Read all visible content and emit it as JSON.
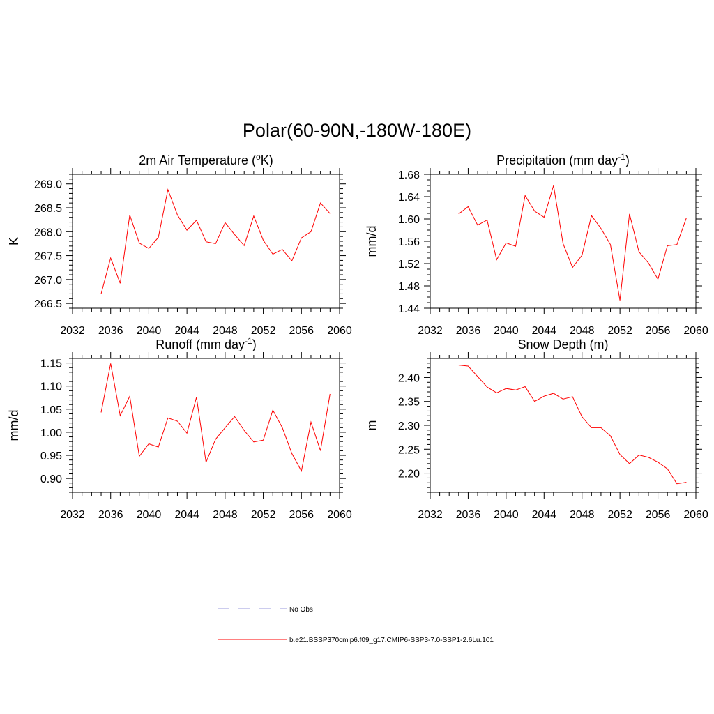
{
  "title": "Polar(60-90N,-180W-180E)",
  "legend": [
    {
      "label": "No Obs",
      "style": "dashed",
      "color": "#9999dd"
    },
    {
      "label": "b.e21.BSSP370cmip6.f09_g17.CMIP6-SSP3-7.0-SSP1-2.6Lu.101",
      "style": "solid",
      "color": "#ff0000"
    }
  ],
  "chart_data": [
    {
      "type": "line",
      "title": "2m Air Temperature (",
      "title_sup": "o",
      "title_tail": "K)",
      "ylabel": "K",
      "xlim": [
        2032,
        2060
      ],
      "ylim": [
        266.4,
        269.2
      ],
      "xticks": [
        2032,
        2036,
        2040,
        2044,
        2048,
        2052,
        2056,
        2060
      ],
      "xtick_labels": [
        "2032",
        "2036",
        "2040",
        "2044",
        "2048",
        "2052",
        "2056",
        "2060"
      ],
      "yticks": [
        266.5,
        267.0,
        267.5,
        268.0,
        268.5,
        269.0
      ],
      "ytick_labels": [
        "266.5",
        "267.0",
        "267.5",
        "268.0",
        "268.5",
        "269.0"
      ],
      "yminor": 0.1,
      "x": [
        2035,
        2036,
        2037,
        2038,
        2039,
        2040,
        2041,
        2042,
        2043,
        2044,
        2045,
        2046,
        2047,
        2048,
        2049,
        2050,
        2051,
        2052,
        2053,
        2054,
        2055,
        2056,
        2057,
        2058,
        2059
      ],
      "series": [
        {
          "values": [
            266.7,
            267.45,
            266.92,
            268.35,
            267.76,
            267.65,
            267.88,
            268.88,
            268.35,
            268.03,
            268.24,
            267.79,
            267.75,
            268.19,
            267.94,
            267.71,
            268.33,
            267.82,
            267.53,
            267.63,
            267.39,
            267.87,
            268.0,
            268.6,
            268.38
          ],
          "color": "#ff0000"
        }
      ]
    },
    {
      "type": "line",
      "title": "Precipitation (mm day",
      "title_sup": "-1",
      "title_tail": ")",
      "ylabel": "mm/d",
      "xlim": [
        2032,
        2060
      ],
      "ylim": [
        1.44,
        1.68
      ],
      "xticks": [
        2032,
        2036,
        2040,
        2044,
        2048,
        2052,
        2056,
        2060
      ],
      "xtick_labels": [
        "2032",
        "2036",
        "2040",
        "2044",
        "2048",
        "2052",
        "2056",
        "2060"
      ],
      "yticks": [
        1.44,
        1.48,
        1.52,
        1.56,
        1.6,
        1.64,
        1.68
      ],
      "ytick_labels": [
        "1.44",
        "1.48",
        "1.52",
        "1.56",
        "1.60",
        "1.64",
        "1.68"
      ],
      "yminor": 0.01,
      "x": [
        2035,
        2036,
        2037,
        2038,
        2039,
        2040,
        2041,
        2042,
        2043,
        2044,
        2045,
        2046,
        2047,
        2048,
        2049,
        2050,
        2051,
        2052,
        2053,
        2054,
        2055,
        2056,
        2057,
        2058,
        2059
      ],
      "series": [
        {
          "values": [
            1.609,
            1.622,
            1.589,
            1.598,
            1.527,
            1.557,
            1.551,
            1.642,
            1.614,
            1.603,
            1.66,
            1.556,
            1.513,
            1.535,
            1.606,
            1.583,
            1.554,
            1.454,
            1.609,
            1.541,
            1.521,
            1.492,
            1.552,
            1.554,
            1.602
          ],
          "color": "#ff0000"
        }
      ]
    },
    {
      "type": "line",
      "title": "Runoff (mm day",
      "title_sup": "-1",
      "title_tail": ")",
      "ylabel": "mm/d",
      "xlim": [
        2032,
        2060
      ],
      "ylim": [
        0.87,
        1.16
      ],
      "xticks": [
        2032,
        2036,
        2040,
        2044,
        2048,
        2052,
        2056,
        2060
      ],
      "xtick_labels": [
        "2032",
        "2036",
        "2040",
        "2044",
        "2048",
        "2052",
        "2056",
        "2060"
      ],
      "yticks": [
        0.9,
        0.95,
        1.0,
        1.05,
        1.1,
        1.15
      ],
      "ytick_labels": [
        "0.90",
        "0.95",
        "1.00",
        "1.05",
        "1.10",
        "1.15"
      ],
      "yminor": 0.01,
      "x": [
        2035,
        2036,
        2037,
        2038,
        2039,
        2040,
        2041,
        2042,
        2043,
        2044,
        2045,
        2046,
        2047,
        2048,
        2049,
        2050,
        2051,
        2052,
        2053,
        2054,
        2055,
        2056,
        2057,
        2058,
        2059
      ],
      "series": [
        {
          "values": [
            1.043,
            1.149,
            1.036,
            1.078,
            0.948,
            0.975,
            0.968,
            1.031,
            1.024,
            0.998,
            1.076,
            0.935,
            0.985,
            1.01,
            1.034,
            1.004,
            0.979,
            0.983,
            1.048,
            1.01,
            0.954,
            0.916,
            1.022,
            0.96,
            1.083
          ],
          "color": "#ff0000"
        }
      ]
    },
    {
      "type": "line",
      "title": "Snow Depth (m)",
      "title_sup": "",
      "title_tail": "",
      "ylabel": "m",
      "xlim": [
        2032,
        2060
      ],
      "ylim": [
        2.16,
        2.44
      ],
      "xticks": [
        2032,
        2036,
        2040,
        2044,
        2048,
        2052,
        2056,
        2060
      ],
      "xtick_labels": [
        "2032",
        "2036",
        "2040",
        "2044",
        "2048",
        "2052",
        "2056",
        "2060"
      ],
      "yticks": [
        2.2,
        2.25,
        2.3,
        2.35,
        2.4
      ],
      "ytick_labels": [
        "2.20",
        "2.25",
        "2.30",
        "2.35",
        "2.40"
      ],
      "yminor": 0.01,
      "x": [
        2035,
        2036,
        2037,
        2038,
        2039,
        2040,
        2041,
        2042,
        2043,
        2044,
        2045,
        2046,
        2047,
        2048,
        2049,
        2050,
        2051,
        2052,
        2053,
        2054,
        2055,
        2056,
        2057,
        2058,
        2059
      ],
      "series": [
        {
          "values": [
            2.426,
            2.424,
            2.402,
            2.38,
            2.368,
            2.377,
            2.374,
            2.381,
            2.35,
            2.361,
            2.367,
            2.355,
            2.36,
            2.318,
            2.295,
            2.295,
            2.278,
            2.239,
            2.22,
            2.238,
            2.233,
            2.223,
            2.209,
            2.178,
            2.181
          ],
          "color": "#ff0000"
        }
      ]
    }
  ]
}
